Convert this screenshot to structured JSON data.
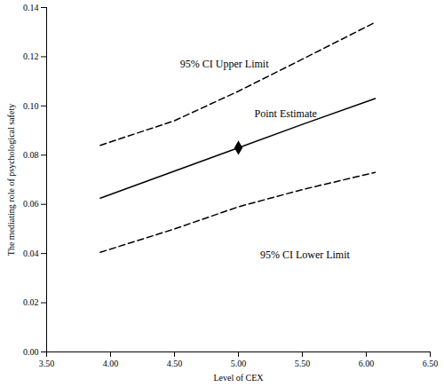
{
  "chart_data": {
    "type": "line",
    "x_label": "Level of CEX",
    "y_label": "The mediating role of psychological safety",
    "x": [
      3.92,
      4.5,
      5.0,
      5.5,
      6.07
    ],
    "series": [
      {
        "values": [
          0.084,
          0.094,
          0.106,
          0.119,
          0.134
        ],
        "color": "#000000",
        "line_style": "dashed"
      },
      {
        "values": [
          0.0625,
          0.0735,
          0.083,
          0.0925,
          0.103
        ],
        "color": "#000000",
        "line_style": "solid"
      },
      {
        "values": [
          0.0405,
          0.05,
          0.059,
          0.066,
          0.073
        ],
        "color": "#000000",
        "line_style": "dashed"
      },
      {
        "type": "scatter",
        "x": [
          5.0
        ],
        "values": [
          0.083
        ],
        "color": "#000000",
        "marker": "diamond"
      }
    ],
    "annotations": [
      {
        "text": "95% CI Upper Limit",
        "x": 4.89,
        "y": 0.117
      },
      {
        "text": "Point Estimate",
        "x": 5.37,
        "y": 0.097
      },
      {
        "text": "95% CI Lower Limit",
        "x": 5.52,
        "y": 0.0394
      }
    ],
    "xlim": [
      3.5,
      6.5
    ],
    "xticks": [
      {
        "value": 3.5,
        "label": "3.50"
      },
      {
        "value": 4.0,
        "label": "4.00"
      },
      {
        "value": 4.5,
        "label": "4.50"
      },
      {
        "value": 5.0,
        "label": "5.00"
      },
      {
        "value": 5.5,
        "label": "5.50"
      },
      {
        "value": 6.0,
        "label": "6.00"
      },
      {
        "value": 6.5,
        "label": "6.50"
      }
    ],
    "ylim": [
      0,
      0.14
    ],
    "yticks": [
      {
        "value": 0,
        "label": "0.00"
      },
      {
        "value": 0.02,
        "label": "0.02"
      },
      {
        "value": 0.04,
        "label": "0.04"
      },
      {
        "value": 0.06,
        "label": "0.06"
      },
      {
        "value": 0.08,
        "label": "0.08"
      },
      {
        "value": 0.1,
        "label": "0.10"
      },
      {
        "value": 0.12,
        "label": "0.12"
      },
      {
        "value": 0.14,
        "label": "0.14"
      }
    ],
    "grid": false
  }
}
